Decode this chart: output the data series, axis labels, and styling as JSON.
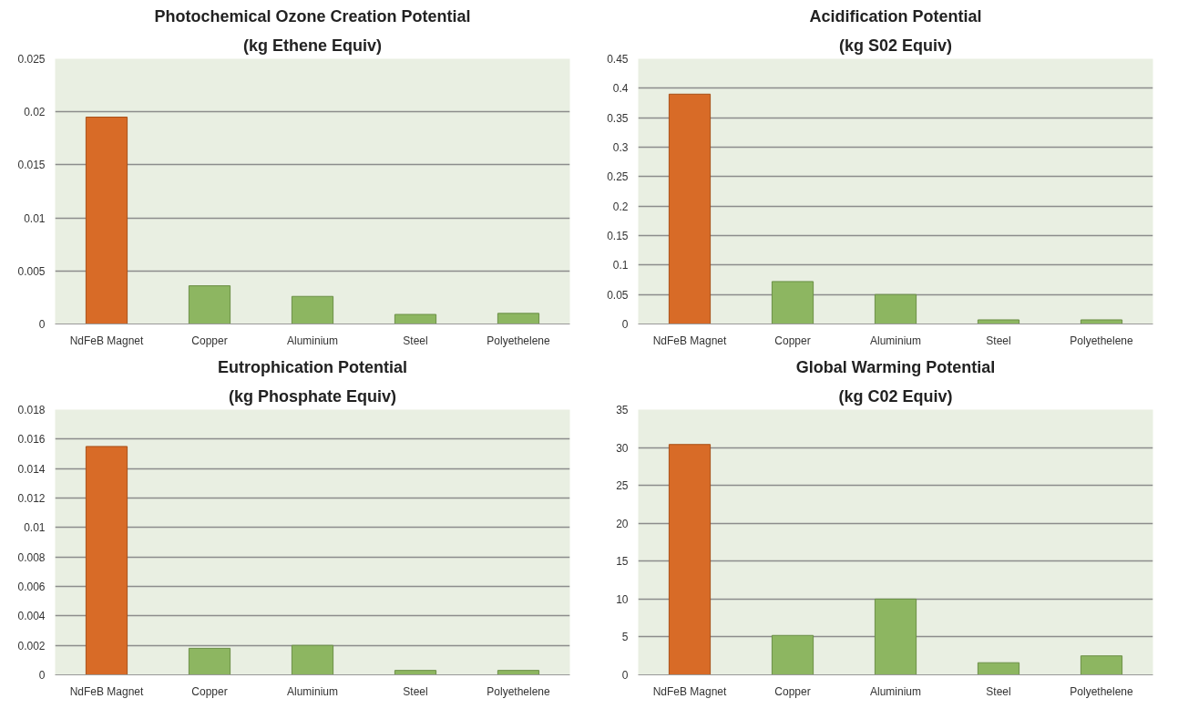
{
  "chart_data": [
    {
      "type": "bar",
      "title": "Photochemical Ozone Creation Potential",
      "subtitle": "(kg Ethene Equiv)",
      "categories": [
        "NdFeB Magnet",
        "Copper",
        "Aluminium",
        "Steel",
        "Polyethelene"
      ],
      "values": [
        0.0195,
        0.0036,
        0.0026,
        0.0009,
        0.001
      ],
      "colors": [
        "#d86b27",
        "#8db661",
        "#8db661",
        "#8db661",
        "#8db661"
      ],
      "ylim": [
        0,
        0.025
      ],
      "yticks": [
        0,
        0.005,
        0.01,
        0.015,
        0.02,
        0.025
      ],
      "grid": "y",
      "legend": false
    },
    {
      "type": "bar",
      "title": "Acidification Potential",
      "subtitle": "(kg S02 Equiv)",
      "categories": [
        "NdFeB Magnet",
        "Copper",
        "Aluminium",
        "Steel",
        "Polyethelene"
      ],
      "values": [
        0.39,
        0.072,
        0.05,
        0.007,
        0.007
      ],
      "colors": [
        "#d86b27",
        "#8db661",
        "#8db661",
        "#8db661",
        "#8db661"
      ],
      "ylim": [
        0,
        0.45
      ],
      "yticks": [
        0,
        0.05,
        0.1,
        0.15,
        0.2,
        0.25,
        0.3,
        0.35,
        0.4,
        0.45
      ],
      "grid": "y",
      "legend": false
    },
    {
      "type": "bar",
      "title": "Eutrophication Potential",
      "subtitle": "(kg Phosphate Equiv)",
      "categories": [
        "NdFeB Magnet",
        "Copper",
        "Aluminium",
        "Steel",
        "Polyethelene"
      ],
      "values": [
        0.0155,
        0.0018,
        0.002,
        0.0003,
        0.0003
      ],
      "colors": [
        "#d86b27",
        "#8db661",
        "#8db661",
        "#8db661",
        "#8db661"
      ],
      "ylim": [
        0,
        0.018
      ],
      "yticks": [
        0,
        0.002,
        0.004,
        0.006,
        0.008,
        0.01,
        0.012,
        0.014,
        0.016,
        0.018
      ],
      "grid": "y",
      "legend": false
    },
    {
      "type": "bar",
      "title": "Global Warming Potential",
      "subtitle": "(kg C02 Equiv)",
      "categories": [
        "NdFeB Magnet",
        "Copper",
        "Aluminium",
        "Steel",
        "Polyethelene"
      ],
      "values": [
        30.4,
        5.2,
        10,
        1.6,
        2.5
      ],
      "colors": [
        "#d86b27",
        "#8db661",
        "#8db661",
        "#8db661",
        "#8db661"
      ],
      "ylim": [
        0,
        35
      ],
      "yticks": [
        0,
        5,
        10,
        15,
        20,
        25,
        30,
        35
      ],
      "grid": "y",
      "legend": false
    }
  ]
}
